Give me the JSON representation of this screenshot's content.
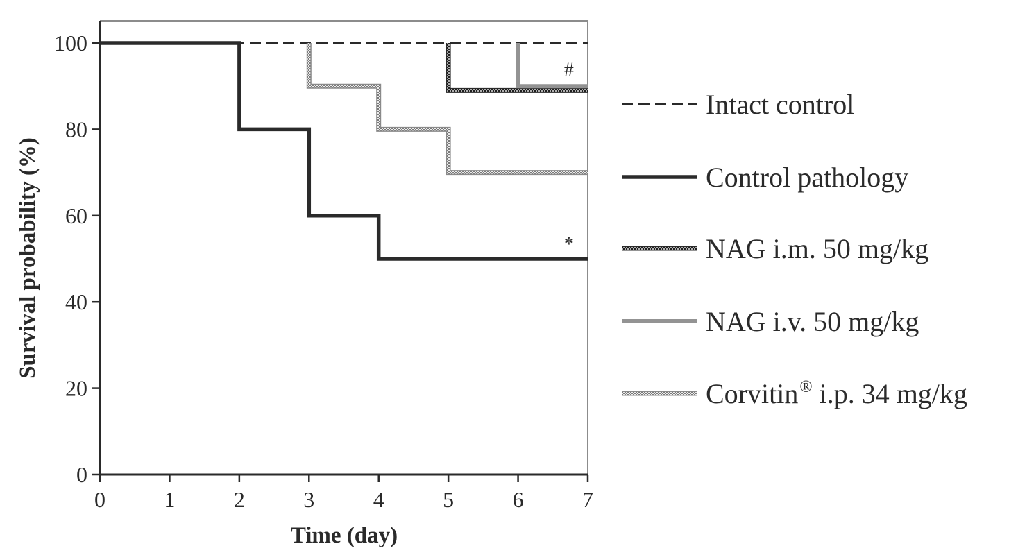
{
  "chart_data": {
    "type": "line",
    "step": true,
    "xlabel": "Time (day)",
    "ylabel": "Survival probability (%)",
    "xlim": [
      0,
      7
    ],
    "ylim": [
      0,
      100
    ],
    "xticks": [
      0,
      1,
      2,
      3,
      4,
      5,
      6,
      7
    ],
    "yticks": [
      0,
      20,
      40,
      60,
      80,
      100
    ],
    "grid": false,
    "legend_position": "right",
    "series": [
      {
        "name": "Intact control",
        "color": "#2a2a2a",
        "style": "dashed",
        "x": [
          0,
          7
        ],
        "y": [
          100,
          100
        ]
      },
      {
        "name": "Control pathology",
        "color": "#2a2a2a",
        "style": "solid-thick",
        "x": [
          0,
          2,
          2,
          3,
          3,
          4,
          4,
          7
        ],
        "y": [
          100,
          100,
          80,
          80,
          60,
          60,
          50,
          50
        ]
      },
      {
        "name": "NAG i.m. 50 mg/kg",
        "color": "#3a3a3a",
        "style": "dark-pattern",
        "x": [
          5,
          5,
          7
        ],
        "y": [
          100,
          89,
          89
        ]
      },
      {
        "name": "NAG i.v. 50 mg/kg",
        "color": "#939393",
        "style": "solid-gray",
        "x": [
          6,
          6,
          7
        ],
        "y": [
          100,
          90,
          90
        ]
      },
      {
        "name": "Corvitin",
        "name_superscript": "®",
        "name_suffix": " i.p. 34 mg/kg",
        "color": "#9a9a9a",
        "style": "light-pattern",
        "x": [
          3,
          3,
          4,
          4,
          5,
          5,
          7
        ],
        "y": [
          100,
          90,
          90,
          80,
          80,
          70,
          70
        ]
      }
    ],
    "annotations": [
      {
        "text": "#",
        "x": 6.73,
        "y": 94
      },
      {
        "text": "*",
        "x": 6.73,
        "y": 53.5
      }
    ]
  }
}
